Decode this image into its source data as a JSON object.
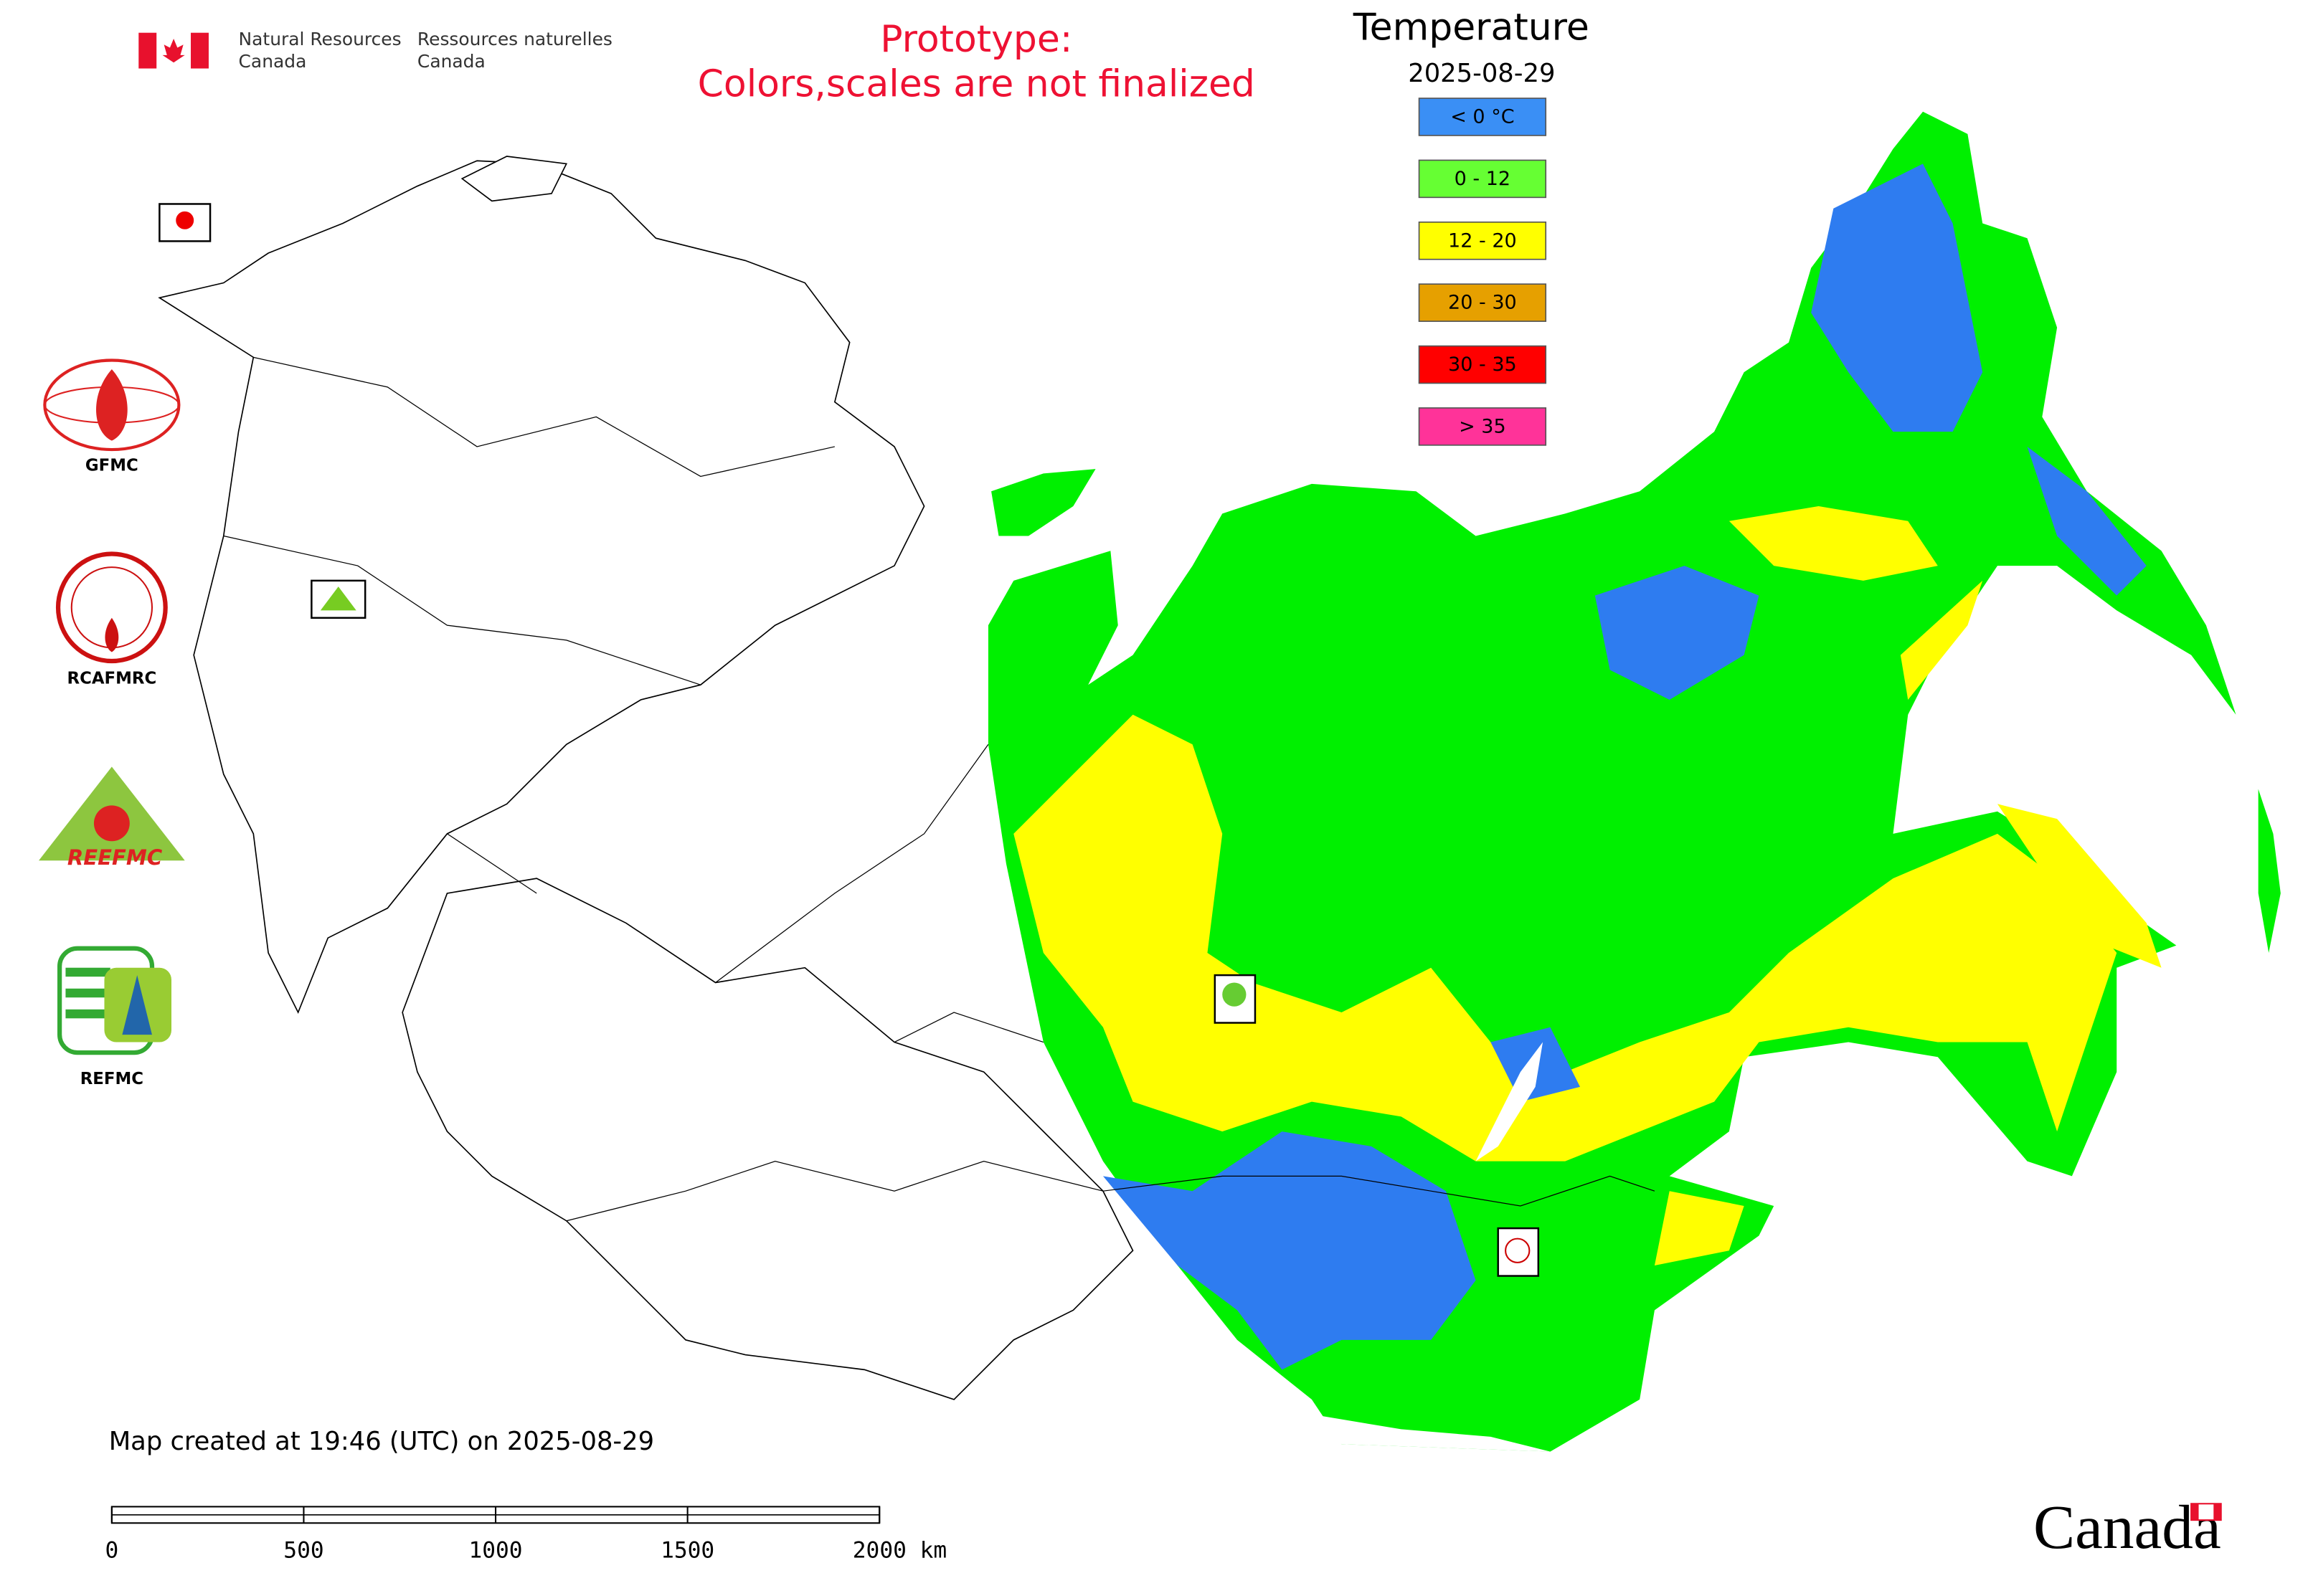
{
  "header": {
    "org_en": [
      "Natural Resources",
      "Canada"
    ],
    "org_fr": [
      "Ressources naturelles",
      "Canada"
    ],
    "notice": [
      "Prototype:",
      "Colors,scales are not finalized"
    ]
  },
  "legend": {
    "title": "Temperature",
    "date": "2025-08-29",
    "items": [
      {
        "label": "< 0 °C",
        "color": "#3a8ff5"
      },
      {
        "label": "0 - 12",
        "color": "#66ff33"
      },
      {
        "label": "12 - 20",
        "color": "#ffff00"
      },
      {
        "label": "20 - 30",
        "color": "#e6a000"
      },
      {
        "label": "30 - 35",
        "color": "#ff0000"
      },
      {
        "label": "> 35",
        "color": "#ff3399"
      }
    ]
  },
  "logos": [
    {
      "label": "GFMC"
    },
    {
      "label": "RCAFMRC"
    },
    {
      "label": "REEFMC"
    },
    {
      "label": "REFMC"
    }
  ],
  "footer": {
    "created": "Map created at 19:46 (UTC) on 2025-08-29",
    "scale_labels": [
      "0",
      "500",
      "1000",
      "1500",
      "2000 km"
    ],
    "wordmark": "Canada"
  }
}
